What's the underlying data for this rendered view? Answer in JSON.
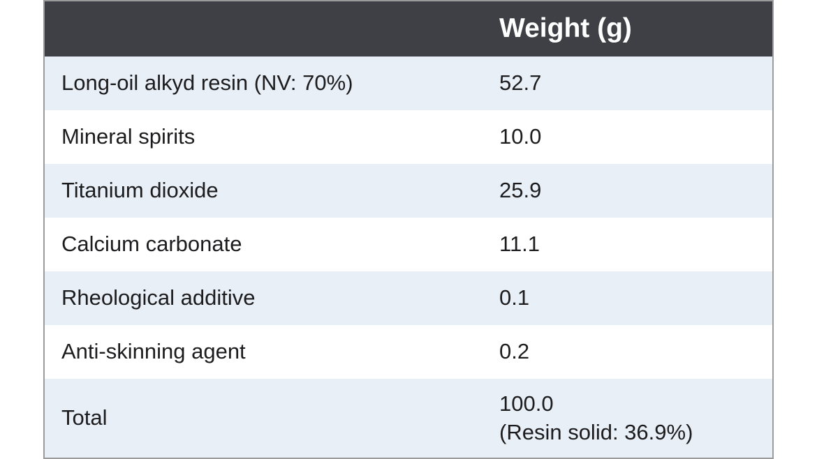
{
  "table": {
    "header": {
      "ingredient": "",
      "weight": "Weight (g)"
    },
    "rows": [
      {
        "ingredient": "Long-oil alkyd resin (NV: 70%)",
        "weight": "52.7"
      },
      {
        "ingredient": "Mineral spirits",
        "weight": "10.0"
      },
      {
        "ingredient": "Titanium dioxide",
        "weight": "25.9"
      },
      {
        "ingredient": "Calcium carbonate",
        "weight": "11.1"
      },
      {
        "ingredient": "Rheological additive",
        "weight": "0.1"
      },
      {
        "ingredient": "Anti-skinning agent",
        "weight": "0.2"
      },
      {
        "ingredient": "Total",
        "weight": "100.0",
        "weight_note": "(Resin solid: 36.9%)"
      }
    ],
    "colors": {
      "header_bg": "#3e4045",
      "header_text": "#ffffff",
      "row_alt_bg": "#e8eff7",
      "row_bg": "#ffffff",
      "body_text": "#1c1c1e",
      "border": "#9b9b9b"
    }
  },
  "chart_data": {
    "type": "table",
    "columns": [
      "",
      "Weight (g)"
    ],
    "rows": [
      [
        "Long-oil alkyd resin (NV: 70%)",
        "52.7"
      ],
      [
        "Mineral spirits",
        "10.0"
      ],
      [
        "Titanium dioxide",
        "25.9"
      ],
      [
        "Calcium carbonate",
        "11.1"
      ],
      [
        "Rheological additive",
        "0.1"
      ],
      [
        "Anti-skinning agent",
        "0.2"
      ],
      [
        "Total",
        "100.0 (Resin solid: 36.9%)"
      ]
    ],
    "title": "",
    "notes": "Formulation totals 100.0 g; resin solid content 36.9%"
  }
}
